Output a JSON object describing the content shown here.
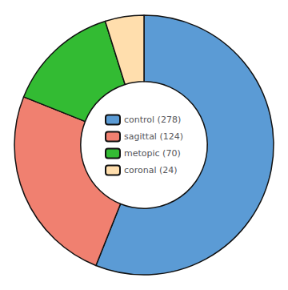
{
  "chart_data": {
    "type": "pie",
    "categories": [
      "control (278)",
      "sagittal (124)",
      "metopic (70)",
      "coronal (24)"
    ],
    "values": [
      278,
      124,
      70,
      24
    ],
    "colors": [
      "#5B9BD5",
      "#F08070",
      "#33BB33",
      "#FFDEAD"
    ],
    "legend": "center"
  }
}
